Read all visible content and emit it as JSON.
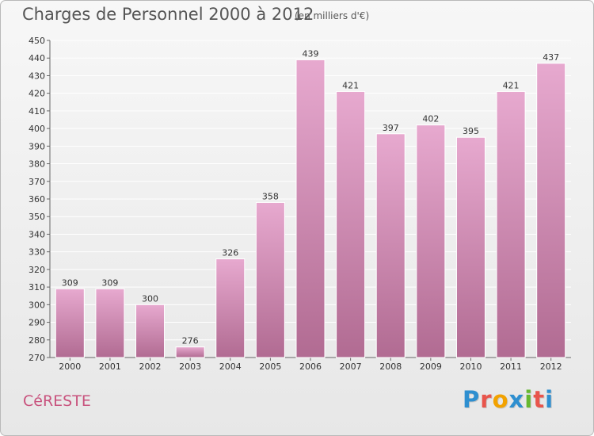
{
  "title": "Charges de Personnel 2000 à 2012",
  "subtitle": "(en milliers d'€)",
  "commune": "CéRESTE",
  "logo": {
    "letters": [
      "P",
      "r",
      "o",
      "x",
      "i",
      "t",
      "i"
    ],
    "colors": [
      "#2e8fd0",
      "#e8554c",
      "#f2a200",
      "#2e8fd0",
      "#66b82f",
      "#e8554c",
      "#2e8fd0"
    ]
  },
  "colors": {
    "bar_top": "#e7a9cf",
    "bar_bottom": "#b16b92",
    "text": "#333333"
  },
  "chart_data": {
    "type": "bar",
    "categories": [
      "2000",
      "2001",
      "2002",
      "2003",
      "2004",
      "2005",
      "2006",
      "2007",
      "2008",
      "2009",
      "2010",
      "2011",
      "2012"
    ],
    "values": [
      309,
      309,
      300,
      276,
      326,
      358,
      439,
      421,
      397,
      402,
      395,
      421,
      437
    ],
    "data_labels": [
      "309",
      "309",
      "300",
      "276",
      "326",
      "358",
      "439",
      "421",
      "397",
      "402",
      "395",
      "421",
      "437"
    ],
    "y_ticks": [
      "270",
      "280",
      "290",
      "300",
      "310",
      "320",
      "330",
      "340",
      "350",
      "360",
      "370",
      "380",
      "390",
      "400",
      "410",
      "420",
      "430",
      "440",
      "450"
    ],
    "ylim": [
      270,
      450
    ],
    "grid": true
  }
}
